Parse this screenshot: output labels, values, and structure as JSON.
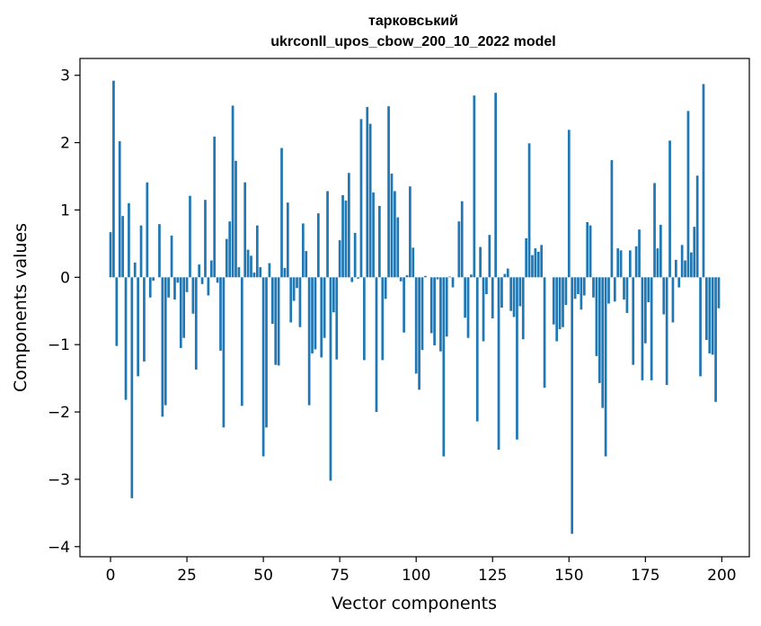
{
  "chart_data": {
    "type": "bar",
    "title_line1": "тарковський",
    "title_line2": "ukrconll_upos_cbow_200_10_2022 model",
    "xlabel": "Vector components",
    "ylabel": "Components values",
    "xlim": [
      -10,
      209
    ],
    "ylim": [
      -4.15,
      3.25
    ],
    "xticks": [
      0,
      25,
      50,
      75,
      100,
      125,
      150,
      175,
      200
    ],
    "xtick_labels": [
      "0",
      "25",
      "50",
      "75",
      "100",
      "125",
      "150",
      "175",
      "200"
    ],
    "yticks": [
      -4,
      -3,
      -2,
      -1,
      0,
      1,
      2,
      3
    ],
    "ytick_labels": [
      "−4",
      "−3",
      "−2",
      "−1",
      "0",
      "1",
      "2",
      "3"
    ],
    "bar_color": "#1f77b4",
    "values": [
      0.67,
      2.92,
      -1.02,
      2.02,
      0.91,
      -1.82,
      1.1,
      -3.28,
      0.22,
      -1.47,
      0.77,
      -1.25,
      1.41,
      -0.3,
      -0.05,
      0.0,
      0.79,
      -2.07,
      -1.9,
      -0.3,
      0.62,
      -0.33,
      -0.08,
      -1.05,
      -0.9,
      -0.22,
      1.21,
      -0.54,
      -1.37,
      0.19,
      -0.1,
      1.15,
      -0.27,
      0.25,
      2.09,
      -0.08,
      -1.09,
      -2.23,
      0.57,
      0.83,
      2.55,
      1.73,
      0.15,
      -1.91,
      1.41,
      0.41,
      0.32,
      0.07,
      0.77,
      0.15,
      -2.66,
      -2.23,
      0.21,
      -0.69,
      -1.3,
      -1.31,
      1.92,
      0.14,
      1.11,
      -0.67,
      -0.35,
      -0.16,
      -0.74,
      0.8,
      0.39,
      -1.9,
      -1.13,
      -1.07,
      0.95,
      -1.19,
      -0.9,
      1.28,
      -3.02,
      -0.52,
      -1.22,
      0.55,
      1.22,
      1.14,
      1.55,
      -0.07,
      0.66,
      -0.02,
      2.35,
      -1.23,
      2.53,
      2.28,
      1.26,
      -2.0,
      1.06,
      -1.23,
      -0.32,
      2.54,
      1.54,
      1.28,
      0.89,
      -0.06,
      -0.82,
      0.03,
      1.35,
      0.44,
      -1.43,
      -1.67,
      -1.08,
      0.02,
      0.0,
      -0.83,
      -1.01,
      -0.03,
      -1.1,
      -2.66,
      -0.88,
      0.01,
      -0.15,
      0.0,
      0.83,
      1.13,
      -0.6,
      -0.9,
      0.04,
      2.7,
      -2.14,
      0.45,
      -0.95,
      -0.25,
      0.63,
      -0.61,
      2.74,
      -2.56,
      -0.45,
      0.05,
      0.13,
      -0.5,
      -0.59,
      -2.41,
      -0.43,
      -0.92,
      0.58,
      1.99,
      0.33,
      0.43,
      0.38,
      0.48,
      -1.64,
      0.0,
      0.0,
      -0.7,
      -0.95,
      -0.77,
      -0.74,
      -0.41,
      2.19,
      -3.81,
      -0.32,
      -0.25,
      -0.48,
      -0.27,
      0.82,
      0.77,
      -0.3,
      -1.17,
      -1.57,
      -1.94,
      -2.66,
      -0.39,
      1.74,
      -0.36,
      0.43,
      0.4,
      -0.33,
      -0.53,
      0.4,
      -1.3,
      0.46,
      0.71,
      -1.53,
      -0.98,
      -0.37,
      -1.53,
      1.4,
      0.43,
      0.78,
      -0.55,
      -1.6,
      2.03,
      -0.67,
      0.26,
      -0.15,
      0.48,
      0.25,
      2.47,
      0.37,
      0.75,
      1.51,
      -1.47,
      2.87,
      -0.93,
      -1.13,
      -1.15,
      -1.85,
      -0.46
    ]
  }
}
